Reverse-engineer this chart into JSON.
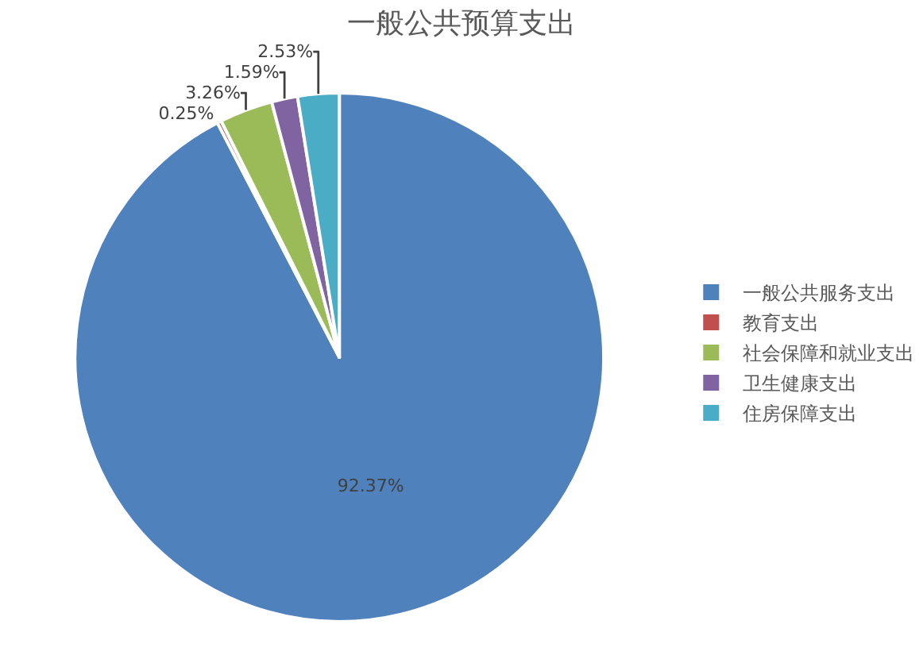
{
  "chart_data": {
    "type": "pie",
    "title": "一般公共预算支出",
    "categories": [
      "一般公共服务支出",
      "教育支出",
      "社会保障和就业支出",
      "卫生健康支出",
      "住房保障支出"
    ],
    "values": [
      92.37,
      0.25,
      3.26,
      1.59,
      2.53
    ],
    "colors": [
      "#4f81bd",
      "#c0504d",
      "#9bbb59",
      "#8064a2",
      "#4bacc6"
    ],
    "value_labels": [
      "92.37%",
      "0.25%",
      "3.26%",
      "1.59%",
      "2.53%"
    ],
    "legend": "right"
  }
}
